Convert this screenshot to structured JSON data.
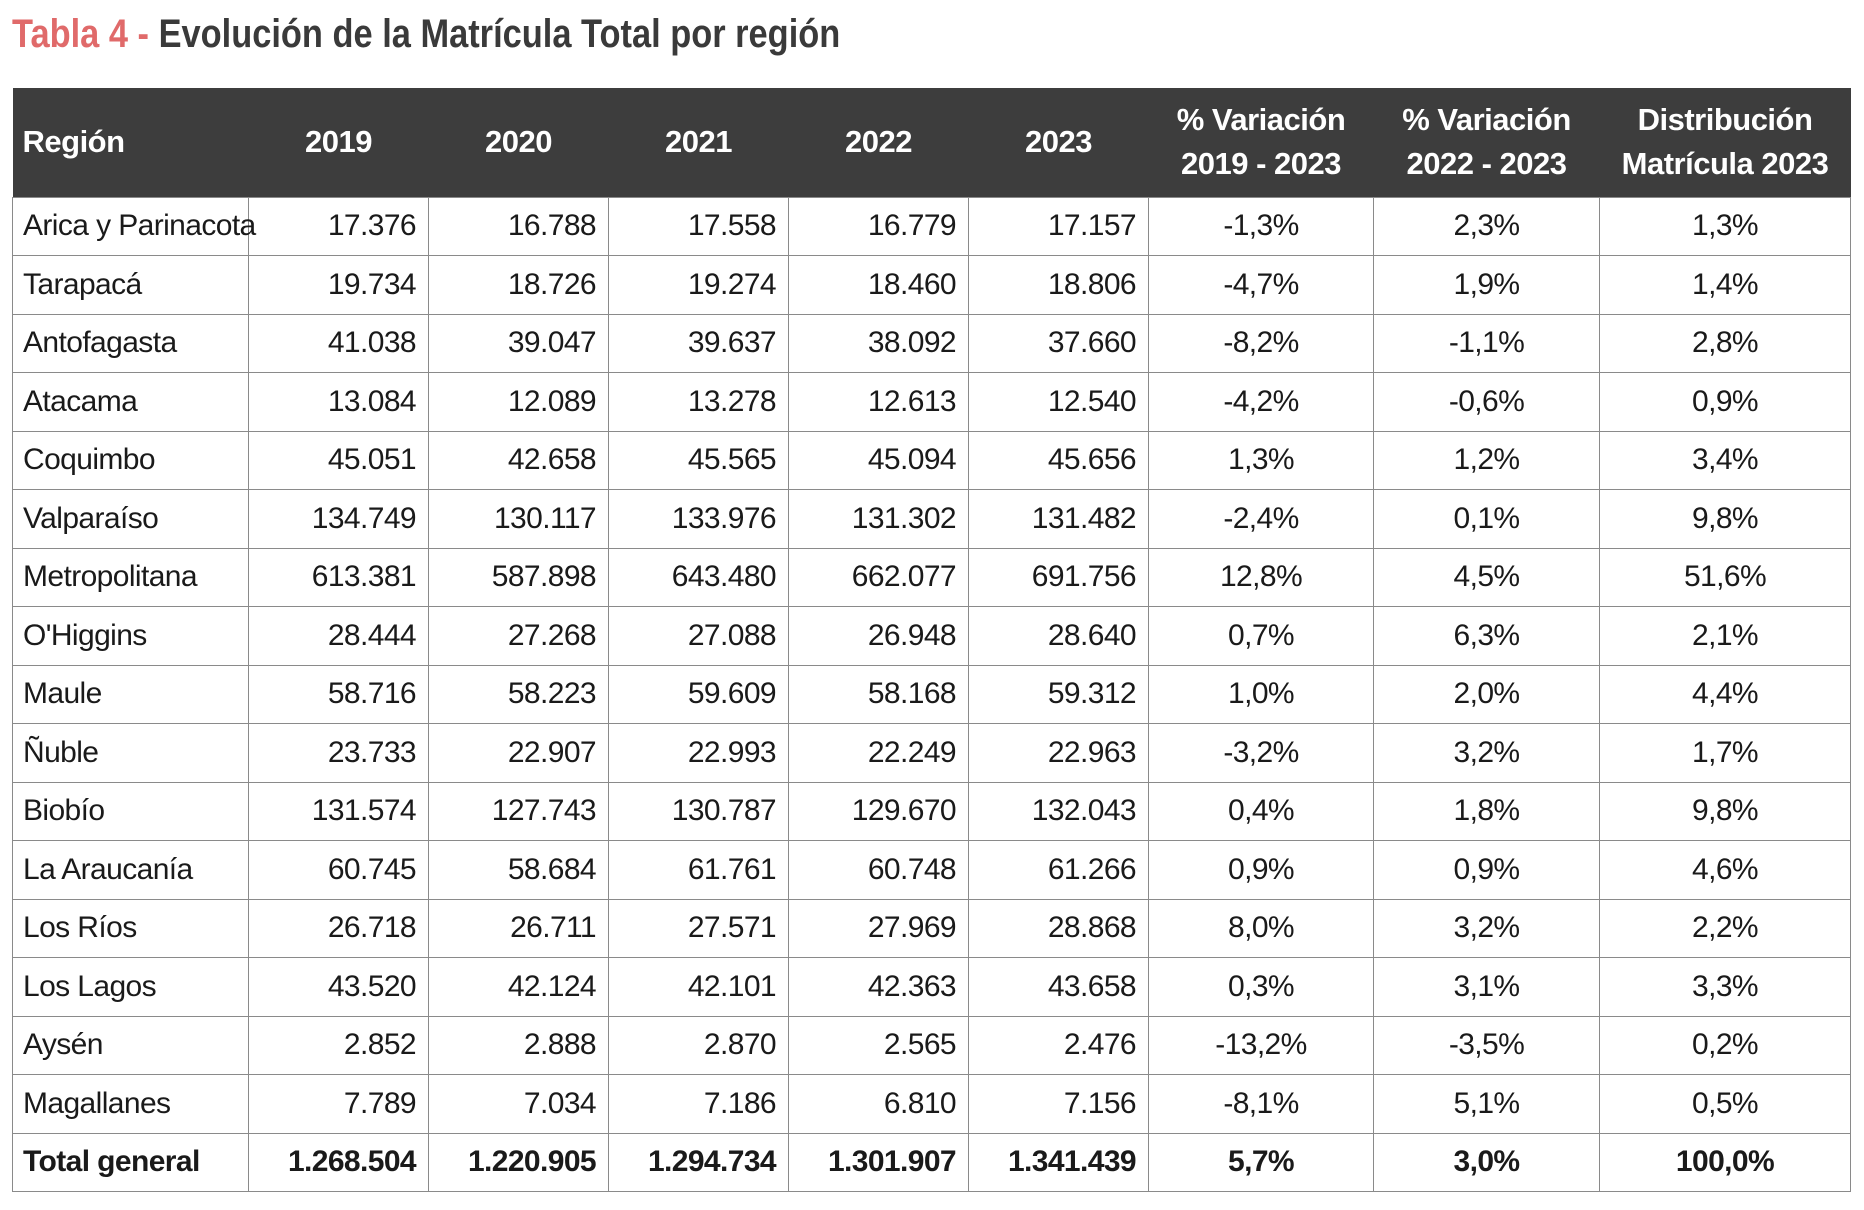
{
  "title": {
    "prefix": "Tabla 4 - ",
    "main": "Evolución de la Matrícula Total por región"
  },
  "table": {
    "headers": {
      "region": "Región",
      "y2019": "2019",
      "y2020": "2020",
      "y2021": "2021",
      "y2022": "2022",
      "y2023": "2023",
      "var_19_23": [
        "% Variación",
        "2019 - 2023"
      ],
      "var_22_23": [
        "% Variación",
        "2022 - 2023"
      ],
      "dist_2023": [
        "Distribución",
        "Matrícula 2023"
      ]
    },
    "rows": [
      [
        "Arica y Parinacota",
        "17.376",
        "16.788",
        "17.558",
        "16.779",
        "17.157",
        "-1,3%",
        "2,3%",
        "1,3%"
      ],
      [
        "Tarapacá",
        "19.734",
        "18.726",
        "19.274",
        "18.460",
        "18.806",
        "-4,7%",
        "1,9%",
        "1,4%"
      ],
      [
        "Antofagasta",
        "41.038",
        "39.047",
        "39.637",
        "38.092",
        "37.660",
        "-8,2%",
        "-1,1%",
        "2,8%"
      ],
      [
        "Atacama",
        "13.084",
        "12.089",
        "13.278",
        "12.613",
        "12.540",
        "-4,2%",
        "-0,6%",
        "0,9%"
      ],
      [
        "Coquimbo",
        "45.051",
        "42.658",
        "45.565",
        "45.094",
        "45.656",
        "1,3%",
        "1,2%",
        "3,4%"
      ],
      [
        "Valparaíso",
        "134.749",
        "130.117",
        "133.976",
        "131.302",
        "131.482",
        "-2,4%",
        "0,1%",
        "9,8%"
      ],
      [
        "Metropolitana",
        "613.381",
        "587.898",
        "643.480",
        "662.077",
        "691.756",
        "12,8%",
        "4,5%",
        "51,6%"
      ],
      [
        "O'Higgins",
        "28.444",
        "27.268",
        "27.088",
        "26.948",
        "28.640",
        "0,7%",
        "6,3%",
        "2,1%"
      ],
      [
        "Maule",
        "58.716",
        "58.223",
        "59.609",
        "58.168",
        "59.312",
        "1,0%",
        "2,0%",
        "4,4%"
      ],
      [
        "Ñuble",
        "23.733",
        "22.907",
        "22.993",
        "22.249",
        "22.963",
        "-3,2%",
        "3,2%",
        "1,7%"
      ],
      [
        "Biobío",
        "131.574",
        "127.743",
        "130.787",
        "129.670",
        "132.043",
        "0,4%",
        "1,8%",
        "9,8%"
      ],
      [
        "La Araucanía",
        "60.745",
        "58.684",
        "61.761",
        "60.748",
        "61.266",
        "0,9%",
        "0,9%",
        "4,6%"
      ],
      [
        "Los Ríos",
        "26.718",
        "26.711",
        "27.571",
        "27.969",
        "28.868",
        "8,0%",
        "3,2%",
        "2,2%"
      ],
      [
        "Los Lagos",
        "43.520",
        "42.124",
        "42.101",
        "42.363",
        "43.658",
        "0,3%",
        "3,1%",
        "3,3%"
      ],
      [
        "Aysén",
        "2.852",
        "2.888",
        "2.870",
        "2.565",
        "2.476",
        "-13,2%",
        "-3,5%",
        "0,2%"
      ],
      [
        "Magallanes",
        "7.789",
        "7.034",
        "7.186",
        "6.810",
        "7.156",
        "-8,1%",
        "5,1%",
        "0,5%"
      ]
    ],
    "total": [
      "Total general",
      "1.268.504",
      "1.220.905",
      "1.294.734",
      "1.301.907",
      "1.341.439",
      "5,7%",
      "3,0%",
      "100,0%"
    ]
  }
}
